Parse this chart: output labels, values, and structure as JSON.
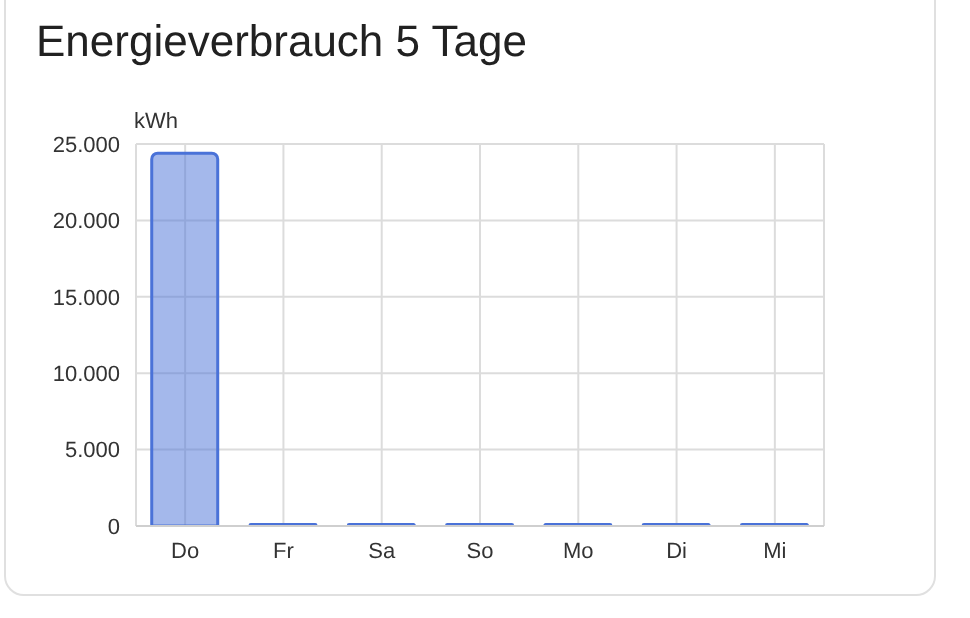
{
  "chart_data": {
    "type": "bar",
    "title": "Energieverbrauch 5 Tage",
    "ylabel": "kWh",
    "categories": [
      "Do",
      "Fr",
      "Sa",
      "So",
      "Mo",
      "Di",
      "Mi"
    ],
    "values": [
      24400,
      100,
      100,
      100,
      100,
      100,
      100
    ],
    "color": "#4a72d8",
    "ylim": [
      0,
      25000
    ],
    "yticks": [
      {
        "value": 0,
        "label": "0"
      },
      {
        "value": 5000,
        "label": "5.000"
      },
      {
        "value": 10000,
        "label": "10.000"
      },
      {
        "value": 15000,
        "label": "15.000"
      },
      {
        "value": 20000,
        "label": "20.000"
      },
      {
        "value": 25000,
        "label": "25.000"
      }
    ],
    "grid": true
  }
}
